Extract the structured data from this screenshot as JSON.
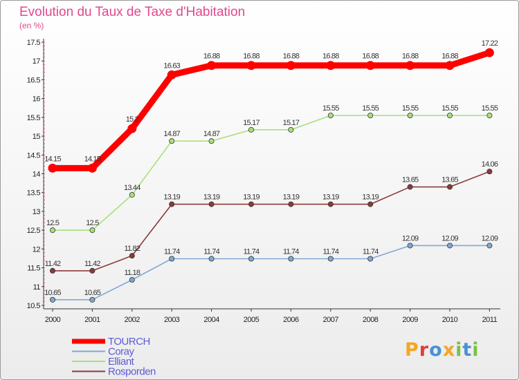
{
  "header": {
    "title": "Evolution du Taux de Taxe d'Habitation",
    "subtitle": "(en %)"
  },
  "logo": {
    "letters": [
      "P",
      "r",
      "o",
      "x",
      "i",
      "t",
      "i"
    ],
    "colors": [
      "#f5a623",
      "#e23b3b",
      "#4a90d9",
      "#f5a623",
      "#7ac143",
      "#4a90d9",
      "#7ac143"
    ]
  },
  "chart_data": {
    "type": "line",
    "x": [
      "2000",
      "2001",
      "2002",
      "2003",
      "2004",
      "2005",
      "2006",
      "2007",
      "2008",
      "2009",
      "2010",
      "2011"
    ],
    "ylim": [
      10.5,
      17.5
    ],
    "yticks": [
      "10.5",
      "11",
      "11.5",
      "12",
      "12.5",
      "13",
      "13.5",
      "14",
      "14.5",
      "15",
      "15.5",
      "16",
      "16.5",
      "17",
      "17.5"
    ],
    "grid": false,
    "legend_position": "bottom-left",
    "series": [
      {
        "name": "TOURCH",
        "color": "#ff0000",
        "values": [
          14.15,
          14.15,
          15.2,
          16.63,
          16.88,
          16.88,
          16.88,
          16.88,
          16.88,
          16.88,
          16.88,
          17.22
        ],
        "labels": [
          "14.15",
          "14.15",
          "15.2",
          "16.63",
          "16.88",
          "16.88",
          "16.88",
          "16.88",
          "16.88",
          "16.88",
          "16.88",
          "17.22"
        ]
      },
      {
        "name": "Coray",
        "color": "#7fa8d4",
        "values": [
          10.65,
          10.65,
          11.18,
          11.74,
          11.74,
          11.74,
          11.74,
          11.74,
          11.74,
          12.09,
          12.09,
          12.09
        ],
        "labels": [
          "10.65",
          "10.65",
          "11.18",
          "11.74",
          "11.74",
          "11.74",
          "11.74",
          "11.74",
          "11.74",
          "12.09",
          "12.09",
          "12.09"
        ]
      },
      {
        "name": "Elliant",
        "color": "#a8e07a",
        "values": [
          12.5,
          12.5,
          13.44,
          14.87,
          14.87,
          15.17,
          15.17,
          15.55,
          15.55,
          15.55,
          15.55,
          15.55
        ],
        "labels": [
          "12.5",
          "12.5",
          "13.44",
          "14.87",
          "14.87",
          "15.17",
          "15.17",
          "15.55",
          "15.55",
          "15.55",
          "15.55",
          "15.55"
        ]
      },
      {
        "name": "Rosporden",
        "color": "#8a3a3a",
        "values": [
          11.42,
          11.42,
          11.82,
          13.19,
          13.19,
          13.19,
          13.19,
          13.19,
          13.19,
          13.65,
          13.65,
          14.06
        ],
        "labels": [
          "11.42",
          "11.42",
          "11.82",
          "13.19",
          "13.19",
          "13.19",
          "13.19",
          "13.19",
          "13.19",
          "13.65",
          "13.65",
          "14.06"
        ]
      }
    ]
  }
}
